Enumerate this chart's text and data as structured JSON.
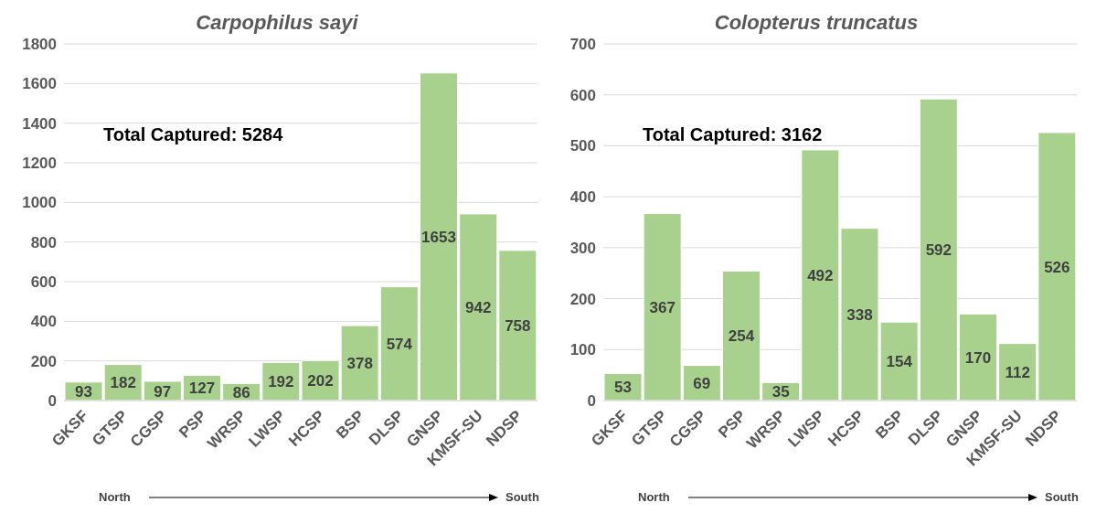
{
  "chart_data": [
    {
      "type": "bar",
      "title": "Carpophilus sayi",
      "categories": [
        "GKSF",
        "GTSP",
        "CGSP",
        "PSP",
        "WRSP",
        "LWSP",
        "HCSP",
        "BSP",
        "DLSP",
        "GNSP",
        "KMSF-SU",
        "NDSP"
      ],
      "values": [
        93,
        182,
        97,
        127,
        86,
        192,
        202,
        378,
        574,
        1653,
        942,
        758
      ],
      "color": "#a9d18e",
      "ylim": [
        0,
        1800
      ],
      "yticks": [
        0,
        200,
        400,
        600,
        800,
        1000,
        1200,
        1400,
        1600,
        1800
      ],
      "grid": "y",
      "data_labels": true,
      "annotations": [
        "Total Captured: 5284",
        "North",
        "South"
      ]
    },
    {
      "type": "bar",
      "title": "Colopterus truncatus",
      "categories": [
        "GKSF",
        "GTSP",
        "CGSP",
        "PSP",
        "WRSP",
        "LWSP",
        "HCSP",
        "BSP",
        "DLSP",
        "GNSP",
        "KMSF-SU",
        "NDSP"
      ],
      "values": [
        53,
        367,
        69,
        254,
        35,
        492,
        338,
        154,
        592,
        170,
        112,
        526
      ],
      "color": "#a9d18e",
      "ylim": [
        0,
        700
      ],
      "yticks": [
        0,
        100,
        200,
        300,
        400,
        500,
        600,
        700
      ],
      "grid": "y",
      "data_labels": true,
      "annotations": [
        "Total Captured: 3162",
        "North",
        "South"
      ]
    }
  ]
}
